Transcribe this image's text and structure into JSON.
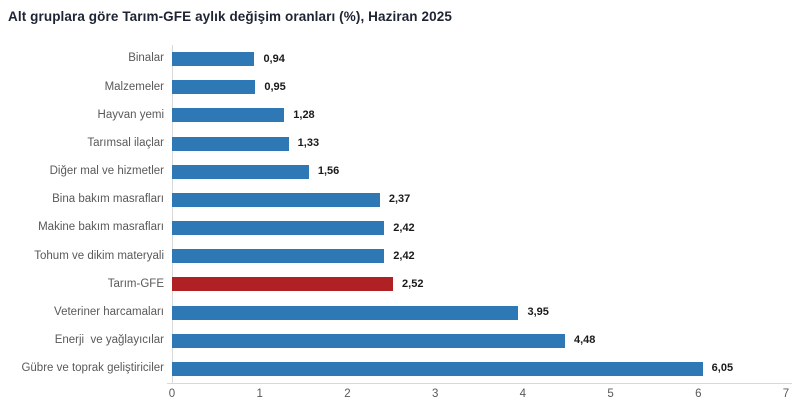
{
  "title": "Alt gruplara göre Tarım-GFE aylık değişim oranları (%), Haziran 2025",
  "chart_data": {
    "type": "bar",
    "orientation": "horizontal",
    "title": "Alt gruplara göre Tarım-GFE aylık değişim oranları (%), Haziran 2025",
    "categories": [
      "Binalar",
      "Malzemeler",
      "Hayvan yemi",
      "Tarımsal ilaçlar",
      "Diğer mal ve hizmetler",
      "Bina bakım masrafları",
      "Makine bakım masrafları",
      "Tohum ve dikim materyali",
      "Tarım-GFE",
      "Veteriner harcamaları",
      "Enerji  ve yağlayıcılar",
      "Gübre ve toprak geliştiriciler"
    ],
    "values": [
      0.94,
      0.95,
      1.28,
      1.33,
      1.56,
      2.37,
      2.42,
      2.42,
      2.52,
      3.95,
      4.48,
      6.05
    ],
    "value_labels": [
      "0,94",
      "0,95",
      "1,28",
      "1,33",
      "1,56",
      "2,37",
      "2,42",
      "2,42",
      "2,52",
      "3,95",
      "4,48",
      "6,05"
    ],
    "highlight_category": "Tarım-GFE",
    "highlight_index": 8,
    "xlabel": "",
    "ylabel": "",
    "xlim": [
      0,
      7
    ],
    "x_ticks": [
      "0",
      "1",
      "2",
      "3",
      "4",
      "5",
      "6",
      "7"
    ],
    "grid": "off",
    "legend": "none",
    "colors": {
      "bar": "#2E79B5",
      "highlight": "#B02126",
      "axis": "#D9D9D9",
      "title": "#1E2433",
      "label": "#595959",
      "value": "#1A1A1A"
    }
  }
}
